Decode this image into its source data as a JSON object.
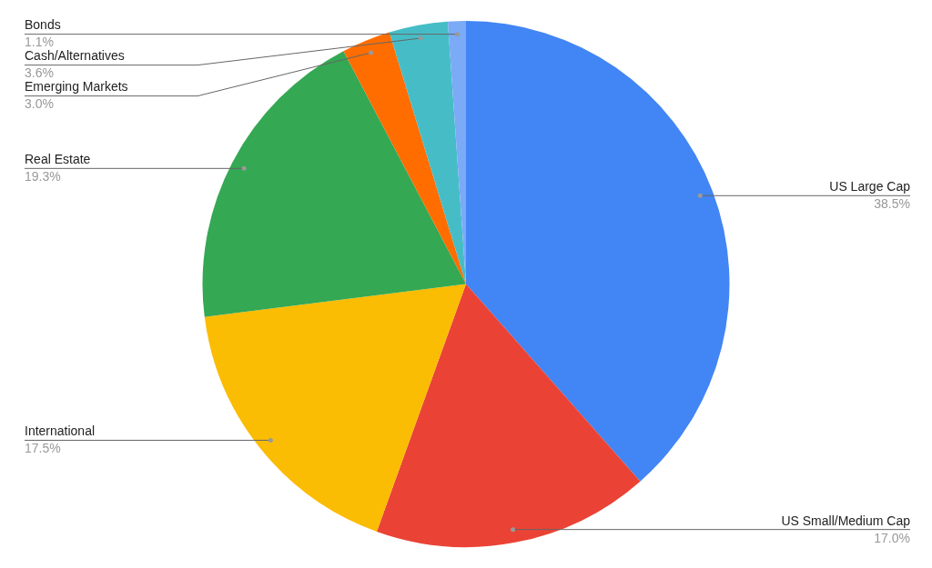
{
  "chart_data": {
    "type": "pie",
    "categories": [
      "US Large Cap",
      "US Small/Medium Cap",
      "International",
      "Real Estate",
      "Emerging Markets",
      "Cash/Alternatives",
      "Bonds"
    ],
    "values": [
      38.5,
      17.0,
      17.5,
      19.3,
      3.0,
      3.6,
      1.1
    ],
    "value_labels": [
      "38.5%",
      "17.0%",
      "17.5%",
      "19.3%",
      "3.0%",
      "3.6%",
      "1.1%"
    ],
    "colors": [
      "#4285f4",
      "#ea4335",
      "#fbbc04",
      "#34a853",
      "#ff6d01",
      "#46bdc6",
      "#7baaf7"
    ],
    "legend": false
  }
}
